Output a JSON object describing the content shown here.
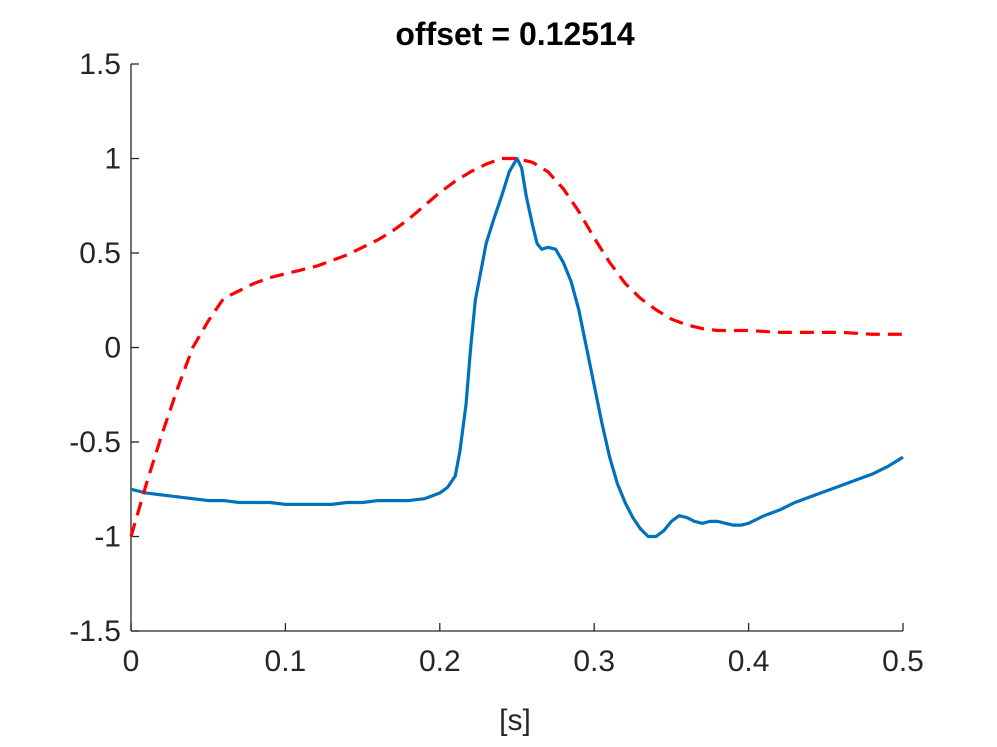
{
  "chart_data": {
    "type": "line",
    "title": "offset = 0.12514",
    "xlabel": "[s]",
    "ylabel": "",
    "xlim": [
      0,
      0.5
    ],
    "ylim": [
      -1.5,
      1.5
    ],
    "xticks": [
      0,
      0.1,
      0.2,
      0.3,
      0.4,
      0.5
    ],
    "xtick_labels": [
      "0",
      "0.1",
      "0.2",
      "0.3",
      "0.4",
      "0.5"
    ],
    "yticks": [
      -1.5,
      -1,
      -0.5,
      0,
      0.5,
      1,
      1.5
    ],
    "ytick_labels": [
      "-1.5",
      "-1",
      "-0.5",
      "0",
      "0.5",
      "1",
      "1.5"
    ],
    "grid": false,
    "legend": "none",
    "series": [
      {
        "style": "solid",
        "color": "#0072BD",
        "x": [
          0,
          0.01,
          0.02,
          0.03,
          0.04,
          0.05,
          0.06,
          0.07,
          0.08,
          0.09,
          0.1,
          0.11,
          0.12,
          0.13,
          0.14,
          0.15,
          0.16,
          0.17,
          0.18,
          0.19,
          0.2,
          0.205,
          0.21,
          0.213,
          0.217,
          0.22,
          0.223,
          0.227,
          0.23,
          0.235,
          0.24,
          0.245,
          0.25,
          0.253,
          0.256,
          0.26,
          0.263,
          0.266,
          0.27,
          0.275,
          0.28,
          0.285,
          0.29,
          0.295,
          0.3,
          0.305,
          0.31,
          0.315,
          0.32,
          0.325,
          0.33,
          0.335,
          0.34,
          0.345,
          0.35,
          0.355,
          0.36,
          0.365,
          0.37,
          0.375,
          0.38,
          0.385,
          0.39,
          0.395,
          0.4,
          0.41,
          0.42,
          0.43,
          0.44,
          0.45,
          0.46,
          0.47,
          0.48,
          0.49,
          0.5
        ],
        "y": [
          -0.75,
          -0.77,
          -0.78,
          -0.79,
          -0.8,
          -0.81,
          -0.81,
          -0.82,
          -0.82,
          -0.82,
          -0.83,
          -0.83,
          -0.83,
          -0.83,
          -0.82,
          -0.82,
          -0.81,
          -0.81,
          -0.81,
          -0.8,
          -0.77,
          -0.74,
          -0.68,
          -0.55,
          -0.3,
          0.0,
          0.25,
          0.42,
          0.55,
          0.68,
          0.8,
          0.93,
          1.0,
          0.95,
          0.8,
          0.65,
          0.55,
          0.52,
          0.53,
          0.52,
          0.45,
          0.35,
          0.2,
          0.0,
          -0.2,
          -0.4,
          -0.58,
          -0.72,
          -0.82,
          -0.9,
          -0.96,
          -1.0,
          -1.0,
          -0.97,
          -0.92,
          -0.89,
          -0.9,
          -0.92,
          -0.93,
          -0.92,
          -0.92,
          -0.93,
          -0.94,
          -0.94,
          -0.93,
          -0.89,
          -0.86,
          -0.82,
          -0.79,
          -0.76,
          -0.73,
          -0.7,
          -0.67,
          -0.63,
          -0.58
        ]
      },
      {
        "style": "dashed",
        "color": "#FF0000",
        "x": [
          0,
          0.01,
          0.02,
          0.03,
          0.04,
          0.05,
          0.06,
          0.07,
          0.08,
          0.09,
          0.1,
          0.11,
          0.12,
          0.13,
          0.14,
          0.15,
          0.16,
          0.17,
          0.18,
          0.19,
          0.2,
          0.21,
          0.22,
          0.23,
          0.24,
          0.25,
          0.26,
          0.27,
          0.28,
          0.29,
          0.3,
          0.31,
          0.32,
          0.33,
          0.34,
          0.35,
          0.36,
          0.37,
          0.38,
          0.39,
          0.4,
          0.42,
          0.44,
          0.46,
          0.48,
          0.5
        ],
        "y": [
          -1.0,
          -0.72,
          -0.46,
          -0.22,
          0.0,
          0.14,
          0.26,
          0.3,
          0.34,
          0.37,
          0.39,
          0.41,
          0.43,
          0.46,
          0.49,
          0.53,
          0.57,
          0.62,
          0.68,
          0.75,
          0.82,
          0.88,
          0.93,
          0.97,
          1.0,
          1.0,
          0.98,
          0.93,
          0.84,
          0.72,
          0.58,
          0.45,
          0.34,
          0.26,
          0.2,
          0.15,
          0.12,
          0.1,
          0.09,
          0.09,
          0.09,
          0.08,
          0.08,
          0.08,
          0.07,
          0.07
        ]
      }
    ]
  }
}
